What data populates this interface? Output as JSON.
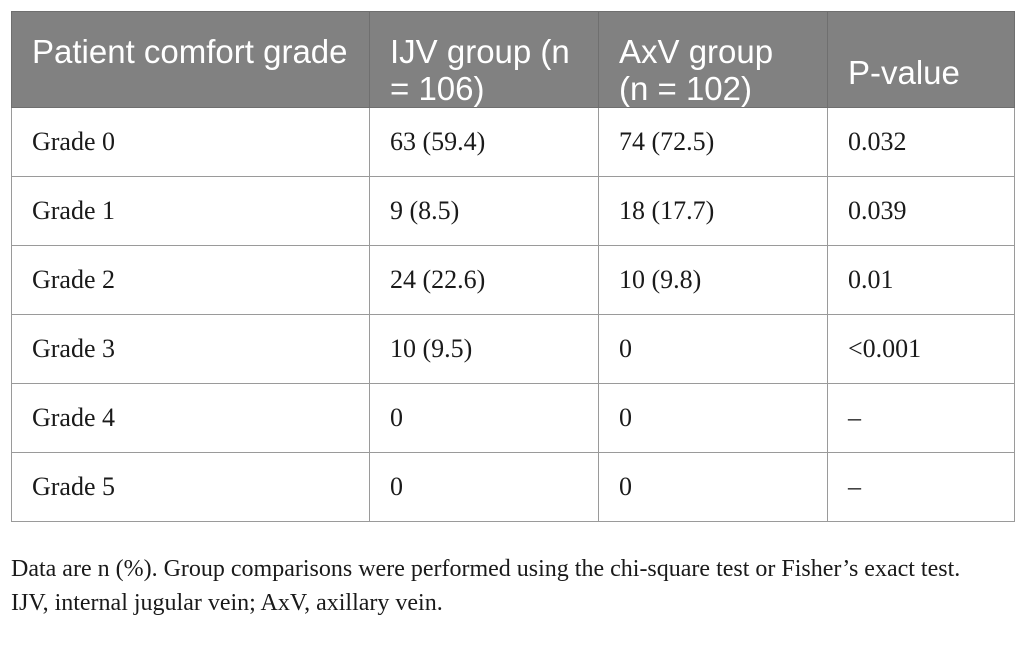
{
  "table": {
    "headers": [
      "Patient comfort grade",
      "IJV group (n = 106)",
      "AxV group (n = 102)",
      "P-value"
    ],
    "rows": [
      [
        "Grade 0",
        "63 (59.4)",
        "74 (72.5)",
        "0.032"
      ],
      [
        "Grade 1",
        "9 (8.5)",
        "18 (17.7)",
        "0.039"
      ],
      [
        "Grade 2",
        "24 (22.6)",
        "10 (9.8)",
        "0.01"
      ],
      [
        "Grade 3",
        "10 (9.5)",
        "0",
        "<0.001"
      ],
      [
        "Grade 4",
        "0",
        "0",
        "–"
      ],
      [
        "Grade 5",
        "0",
        "0",
        "–"
      ]
    ]
  },
  "footnotes": {
    "line1": "Data are n (%). Group comparisons were performed using the chi-square test or Fisher’s exact test.",
    "line2": "IJV, internal jugular vein; AxV, axillary vein."
  },
  "colors": {
    "header_bg": "#818181",
    "header_text": "#ffffff",
    "border": "#9a9a9a"
  }
}
